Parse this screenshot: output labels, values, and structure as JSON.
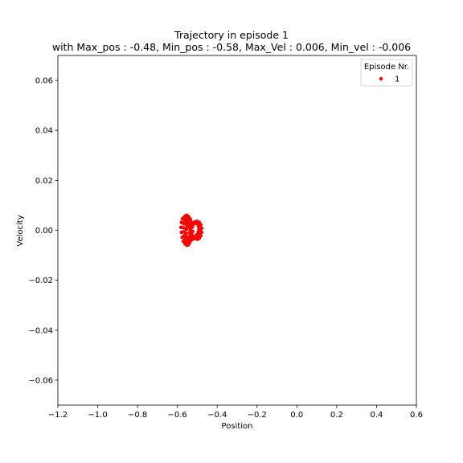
{
  "chart_data": {
    "type": "scatter",
    "title_line1": "Trajectory in episode 1",
    "title_line2": "with Max_pos : -0.48, Min_pos : -0.58, Max_Vel : 0.006, Min_vel : -0.006",
    "xlabel": "Position",
    "ylabel": "Velocity",
    "xlim": [
      -1.2,
      0.6
    ],
    "ylim": [
      -0.07,
      0.07
    ],
    "x_ticks": [
      -1.2,
      -1.0,
      -0.8,
      -0.6,
      -0.4,
      -0.2,
      0.0,
      0.2,
      0.4,
      0.6
    ],
    "x_tick_labels": [
      "−1.2",
      "−1.0",
      "−0.8",
      "−0.6",
      "−0.4",
      "−0.2",
      "0.0",
      "0.2",
      "0.4",
      "0.6"
    ],
    "y_ticks": [
      0.06,
      0.04,
      0.02,
      0.0,
      -0.02,
      -0.04,
      -0.06
    ],
    "y_tick_labels": [
      "0.06",
      "0.04",
      "0.02",
      "0.00",
      "−0.02",
      "−0.04",
      "−0.06"
    ],
    "grid": false,
    "legend": {
      "title": "Episode Nr.",
      "placement": "top-right",
      "entries": [
        "1"
      ]
    },
    "series": [
      {
        "name": "1",
        "color": "#ff0000",
        "points": [
          [
            -0.535,
            0.0
          ],
          [
            -0.528,
            0.0012
          ],
          [
            -0.52,
            0.0024
          ],
          [
            -0.51,
            0.0033
          ],
          [
            -0.5,
            0.0036
          ],
          [
            -0.49,
            0.0032
          ],
          [
            -0.482,
            0.0022
          ],
          [
            -0.478,
            0.0008
          ],
          [
            -0.478,
            -0.0008
          ],
          [
            -0.482,
            -0.0022
          ],
          [
            -0.49,
            -0.0032
          ],
          [
            -0.5,
            -0.0036
          ],
          [
            -0.51,
            -0.0033
          ],
          [
            -0.52,
            -0.0024
          ],
          [
            -0.528,
            -0.0012
          ],
          [
            -0.536,
            0.0
          ],
          [
            -0.544,
            0.0015
          ],
          [
            -0.552,
            0.003
          ],
          [
            -0.56,
            0.0042
          ],
          [
            -0.568,
            0.005
          ],
          [
            -0.575,
            0.0046
          ],
          [
            -0.58,
            0.0032
          ],
          [
            -0.582,
            0.0012
          ],
          [
            -0.58,
            -0.0008
          ],
          [
            -0.576,
            -0.0028
          ],
          [
            -0.57,
            -0.0044
          ],
          [
            -0.562,
            -0.0054
          ],
          [
            -0.553,
            -0.006
          ],
          [
            -0.545,
            -0.0058
          ],
          [
            -0.538,
            -0.005
          ],
          [
            -0.532,
            -0.0038
          ],
          [
            -0.528,
            -0.0022
          ],
          [
            -0.526,
            -0.0005
          ],
          [
            -0.527,
            0.0012
          ],
          [
            -0.531,
            0.003
          ],
          [
            -0.537,
            0.0046
          ],
          [
            -0.545,
            0.0056
          ],
          [
            -0.554,
            0.006
          ],
          [
            -0.562,
            0.0056
          ],
          [
            -0.57,
            0.0046
          ],
          [
            -0.575,
            0.003
          ],
          [
            -0.578,
            0.0012
          ],
          [
            -0.577,
            -0.0008
          ],
          [
            -0.572,
            -0.0026
          ],
          [
            -0.565,
            -0.004
          ],
          [
            -0.556,
            -0.0048
          ],
          [
            -0.546,
            -0.005
          ],
          [
            -0.537,
            -0.0046
          ],
          [
            -0.53,
            -0.0036
          ],
          [
            -0.525,
            -0.002
          ],
          [
            -0.523,
            -0.0004
          ],
          [
            -0.524,
            0.0014
          ],
          [
            -0.528,
            0.003
          ],
          [
            -0.534,
            0.0042
          ],
          [
            -0.541,
            0.005
          ],
          [
            -0.549,
            0.0052
          ],
          [
            -0.556,
            0.0048
          ],
          [
            -0.562,
            0.004
          ],
          [
            -0.566,
            0.0026
          ],
          [
            -0.568,
            0.001
          ],
          [
            -0.567,
            -0.0006
          ],
          [
            -0.563,
            -0.002
          ],
          [
            -0.557,
            -0.0032
          ],
          [
            -0.549,
            -0.004
          ],
          [
            -0.54,
            -0.0042
          ],
          [
            -0.531,
            -0.004
          ],
          [
            -0.522,
            -0.0034
          ],
          [
            -0.512,
            -0.0028
          ],
          [
            -0.503,
            -0.0018
          ],
          [
            -0.495,
            -0.0006
          ],
          [
            -0.492,
            0.0006
          ],
          [
            -0.495,
            0.0018
          ],
          [
            -0.503,
            0.0027
          ],
          [
            -0.513,
            0.003
          ],
          [
            -0.523,
            0.0026
          ],
          [
            -0.531,
            0.0016
          ],
          [
            -0.536,
            0.0004
          ],
          [
            -0.538,
            -0.001
          ],
          [
            -0.535,
            -0.0022
          ],
          [
            -0.528,
            -0.003
          ],
          [
            -0.518,
            -0.0034
          ],
          [
            -0.507,
            -0.0032
          ],
          [
            -0.497,
            -0.0026
          ],
          [
            -0.489,
            -0.0016
          ],
          [
            -0.485,
            -0.0004
          ],
          [
            -0.486,
            0.001
          ],
          [
            -0.491,
            0.0022
          ],
          [
            -0.5,
            0.003
          ],
          [
            -0.511,
            0.0034
          ],
          [
            -0.522,
            0.003
          ],
          [
            -0.548,
            0.003
          ],
          [
            -0.552,
            0.0018
          ],
          [
            -0.555,
            0.0004
          ],
          [
            -0.554,
            -0.0012
          ],
          [
            -0.55,
            -0.0026
          ],
          [
            -0.542,
            -0.0034
          ],
          [
            -0.533,
            -0.0026
          ],
          [
            -0.545,
            0.004
          ],
          [
            -0.558,
            -0.003
          ],
          [
            -0.54,
            0.002
          ]
        ]
      }
    ]
  }
}
